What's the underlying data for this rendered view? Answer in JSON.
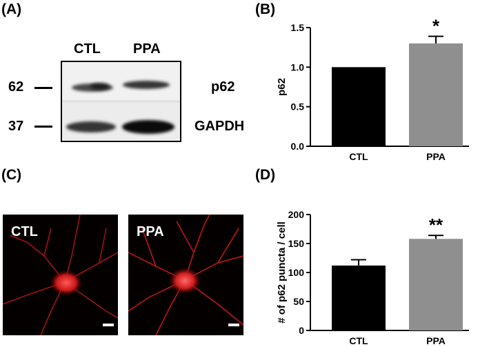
{
  "panels": {
    "A": "(A)",
    "B": "(B)",
    "C": "(C)",
    "D": "(D)"
  },
  "western_blot": {
    "lanes": [
      "CTL",
      "PPA"
    ],
    "markers": [
      "62",
      "37"
    ],
    "bands": [
      "p62",
      "GAPDH"
    ]
  },
  "micrographs": {
    "labels": [
      "CTL",
      "PPA"
    ],
    "stain_color": "#d42020"
  },
  "chart_data": [
    {
      "type": "bar",
      "categories": [
        "CTL",
        "PPA"
      ],
      "values": [
        1.0,
        1.3
      ],
      "errors": [
        0,
        0.09
      ],
      "ylabel": "p62",
      "ylim": [
        0,
        1.5
      ],
      "yticks": [
        "0.0",
        "0.5",
        "1.0",
        "1.5"
      ],
      "significance": [
        "",
        "*"
      ],
      "colors": [
        "#000000",
        "#8f8f8f"
      ]
    },
    {
      "type": "bar",
      "categories": [
        "CTL",
        "PPA"
      ],
      "values": [
        112,
        158
      ],
      "errors": [
        10,
        6
      ],
      "ylabel": "# of p62 puncta / cell",
      "ylim": [
        0,
        200
      ],
      "yticks": [
        "0",
        "50",
        "100",
        "150",
        "200"
      ],
      "significance": [
        "",
        "**"
      ],
      "colors": [
        "#000000",
        "#8f8f8f"
      ]
    }
  ]
}
